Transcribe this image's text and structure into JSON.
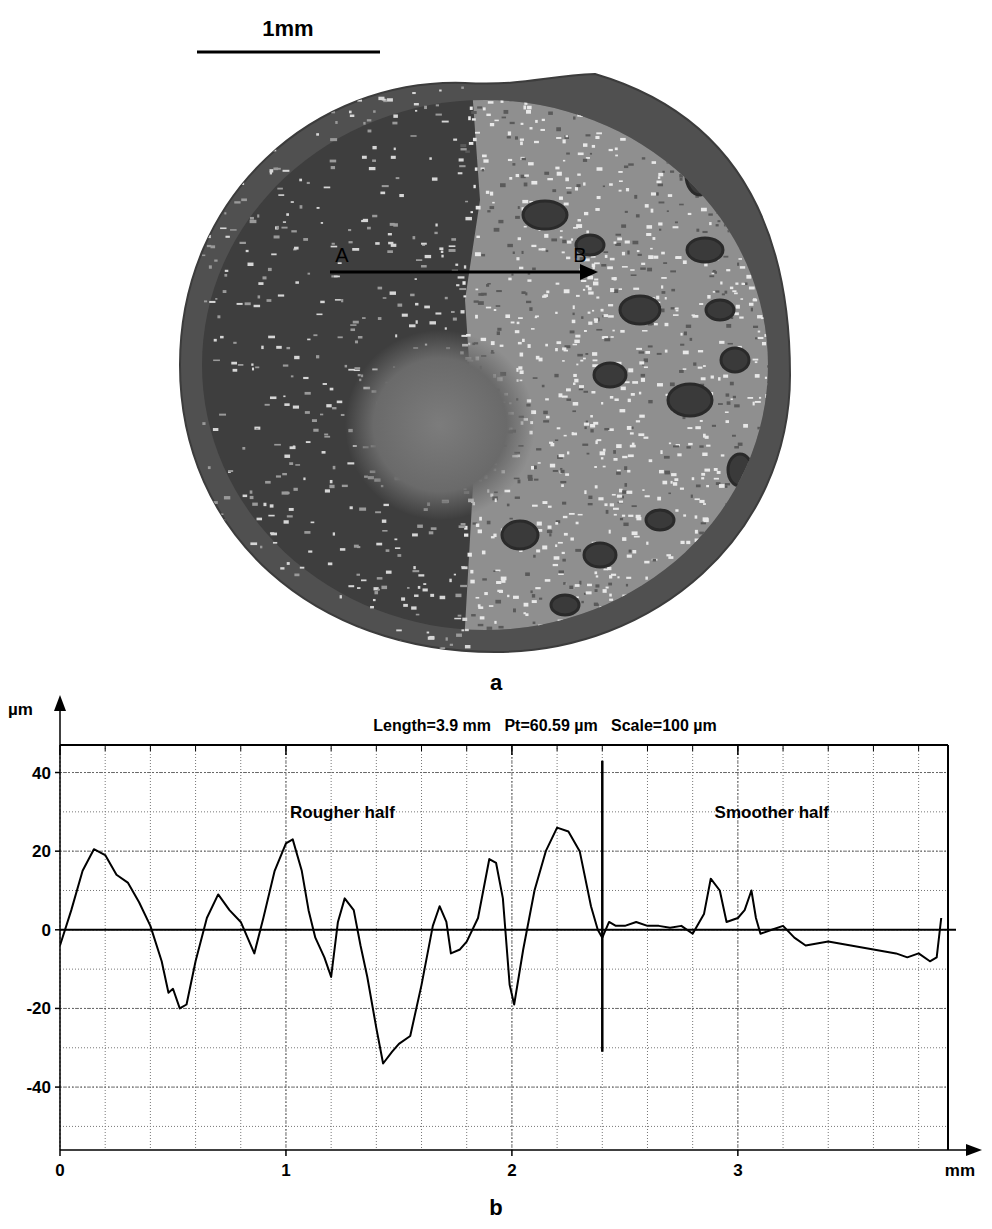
{
  "photo": {
    "scale_bar_label": "1mm",
    "start_label": "A",
    "end_label": "B",
    "panel": "a"
  },
  "chart_data": {
    "type": "line",
    "panel": "b",
    "title": "Length=3.9 mm   Pt=60.59 µm   Scale=100 µm",
    "x_label": "mm",
    "y_label": "µm",
    "x": [
      0,
      0.05,
      0.1,
      0.15,
      0.2,
      0.25,
      0.3,
      0.35,
      0.4,
      0.45,
      0.48,
      0.5,
      0.53,
      0.56,
      0.6,
      0.65,
      0.7,
      0.75,
      0.8,
      0.83,
      0.86,
      0.9,
      0.95,
      1.0,
      1.03,
      1.07,
      1.1,
      1.13,
      1.17,
      1.2,
      1.23,
      1.26,
      1.3,
      1.33,
      1.36,
      1.4,
      1.43,
      1.47,
      1.5,
      1.55,
      1.6,
      1.65,
      1.68,
      1.71,
      1.73,
      1.77,
      1.8,
      1.85,
      1.9,
      1.93,
      1.96,
      1.99,
      2.01,
      2.05,
      2.1,
      2.15,
      2.2,
      2.25,
      2.3,
      2.35,
      2.38,
      2.4,
      2.43,
      2.46,
      2.5,
      2.55,
      2.6,
      2.65,
      2.7,
      2.75,
      2.8,
      2.85,
      2.88,
      2.92,
      2.95,
      3.0,
      3.03,
      3.06,
      3.08,
      3.1,
      3.15,
      3.2,
      3.25,
      3.3,
      3.4,
      3.5,
      3.6,
      3.7,
      3.75,
      3.8,
      3.85,
      3.88,
      3.9
    ],
    "values": [
      -4,
      5,
      15,
      20.5,
      19,
      14,
      12,
      7,
      1,
      -8,
      -16,
      -15,
      -20,
      -19,
      -8,
      3,
      9,
      5,
      2,
      -2,
      -6,
      3,
      15,
      22,
      23,
      15,
      5,
      -2,
      -7,
      -12,
      2,
      8,
      5,
      -4,
      -12,
      -25,
      -34,
      -31,
      -29,
      -27,
      -14,
      1,
      6,
      2,
      -6,
      -5,
      -3,
      3,
      18,
      17,
      8,
      -14,
      -19,
      -5,
      10,
      20,
      26,
      25,
      20,
      6,
      0,
      -2,
      2,
      1,
      1,
      2,
      1,
      1,
      0.5,
      1,
      -1,
      4,
      13,
      10,
      2,
      3,
      5,
      10,
      3,
      -1,
      0,
      1,
      -2,
      -4,
      -3,
      -4,
      -5,
      -6,
      -7,
      -6,
      -8,
      -7,
      3
    ],
    "color": "#000000",
    "xlim": [
      0,
      3.93
    ],
    "ylim": [
      -56,
      47
    ],
    "xticks": [
      0,
      1,
      2,
      3
    ],
    "yticks": [
      -40,
      -20,
      0,
      20,
      40
    ],
    "grid": true,
    "annotations": [
      {
        "text": "Rougher half",
        "x": 1.25,
        "y": 30
      },
      {
        "text": "Smoother half",
        "x": 3.15,
        "y": 30
      }
    ],
    "divider": {
      "x": 2.4,
      "ymin": -31,
      "ymax": 43
    }
  }
}
